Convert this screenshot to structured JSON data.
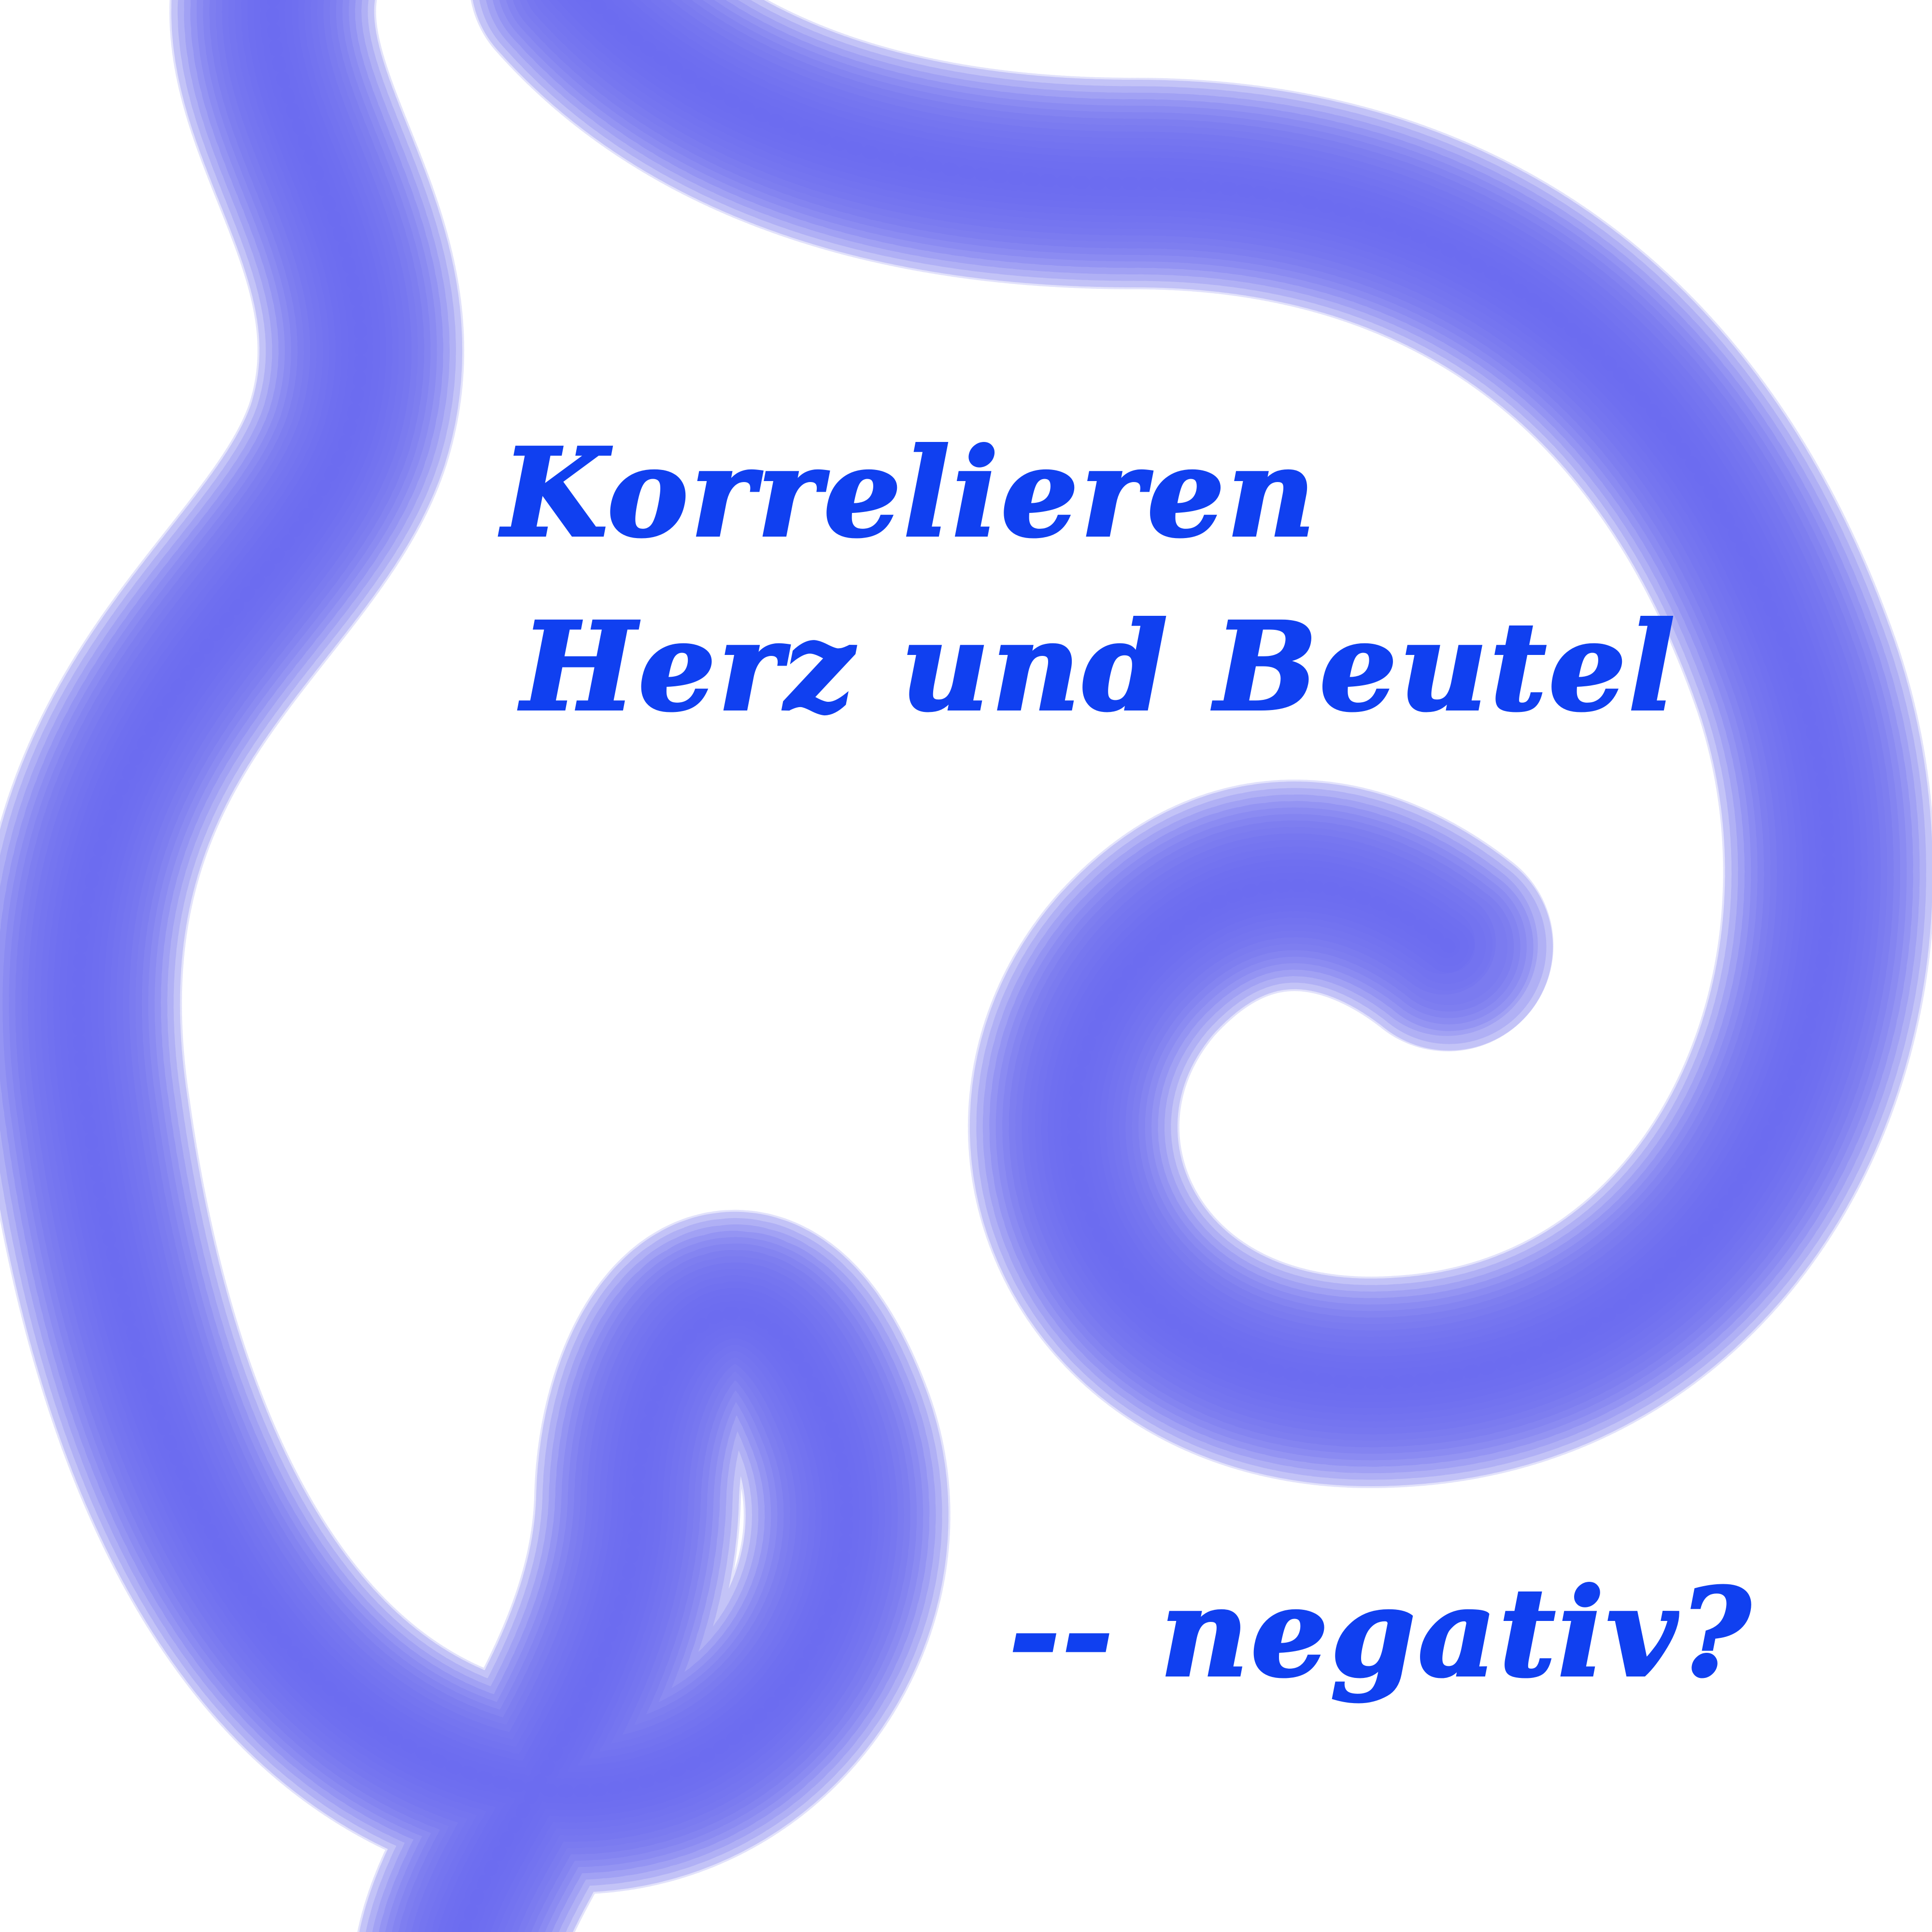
{
  "headline": {
    "line1": "Korrelieren",
    "line2": "Herz und Beutel",
    "line3": "-- negativ?"
  },
  "colors": {
    "text": "#1040f0",
    "pattern": "#6f6ff0",
    "background": "#ffffff"
  }
}
